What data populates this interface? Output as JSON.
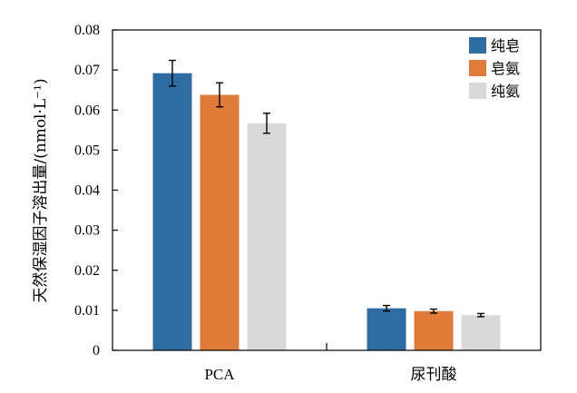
{
  "chart_data": {
    "type": "bar",
    "categories": [
      "PCA",
      "尿刊酸"
    ],
    "series": [
      {
        "name": "纯皂",
        "color": "#2e6ca4",
        "values": [
          0.0692,
          0.0105
        ],
        "errors": [
          0.0032,
          0.0007
        ]
      },
      {
        "name": "皂氨",
        "color": "#e07b39",
        "values": [
          0.0638,
          0.0098
        ],
        "errors": [
          0.003,
          0.0005
        ]
      },
      {
        "name": "纯氨",
        "color": "#d9d9d9",
        "values": [
          0.0567,
          0.0088
        ],
        "errors": [
          0.0025,
          0.0004
        ]
      }
    ],
    "ylabel": "天然保湿因子溶出量/(nmol·L⁻¹)",
    "ylim": [
      0,
      0.08
    ],
    "yticks": [
      "0",
      "0.01",
      "0.02",
      "0.03",
      "0.04",
      "0.05",
      "0.06",
      "0.07",
      "0.08"
    ],
    "legend_position": "top-right",
    "grid": false
  }
}
